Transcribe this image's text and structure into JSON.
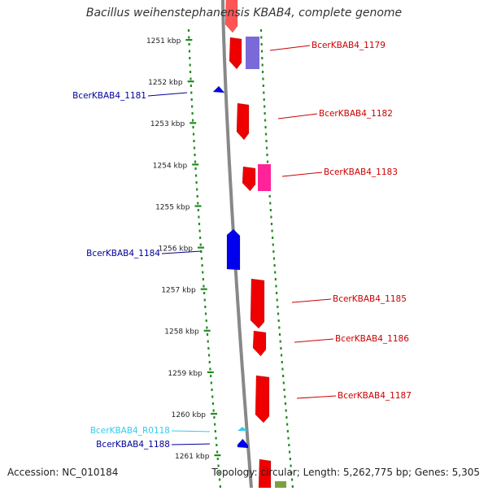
{
  "title": "Bacillus weihenstephanensis KBAB4, complete genome",
  "footer": {
    "accession": "Accession: NC_010184",
    "topology": "Topology: circular; Length: 5,262,775 bp; Genes: 5,305"
  },
  "colors": {
    "forward_gene": "#ff0000",
    "reverse_gene": "#0000ee",
    "rna": "#33ccee",
    "scale_ticks": "#228b22",
    "backbone": "#888888"
  },
  "scale": {
    "unit": "kbp",
    "ticks": [
      1251,
      1252,
      1253,
      1254,
      1255,
      1256,
      1257,
      1258,
      1259,
      1260,
      1261
    ]
  },
  "features": [
    {
      "label": "BcerKBAB4_1179",
      "strand": "forward",
      "color": "#cc0000"
    },
    {
      "label": "BcerKBAB4_1181",
      "strand": "reverse",
      "color": "#000099"
    },
    {
      "label": "BcerKBAB4_1182",
      "strand": "forward",
      "color": "#cc0000"
    },
    {
      "label": "BcerKBAB4_1183",
      "strand": "forward",
      "color": "#cc0000"
    },
    {
      "label": "BcerKBAB4_1184",
      "strand": "reverse",
      "color": "#000099"
    },
    {
      "label": "BcerKBAB4_1185",
      "strand": "forward",
      "color": "#cc0000"
    },
    {
      "label": "BcerKBAB4_1186",
      "strand": "forward",
      "color": "#cc0000"
    },
    {
      "label": "BcerKBAB4_1187",
      "strand": "forward",
      "color": "#cc0000"
    },
    {
      "label": "BcerKBAB4_R0118",
      "strand": "reverse",
      "color": "#33ccee"
    },
    {
      "label": "BcerKBAB4_1188",
      "strand": "reverse",
      "color": "#000099"
    }
  ]
}
